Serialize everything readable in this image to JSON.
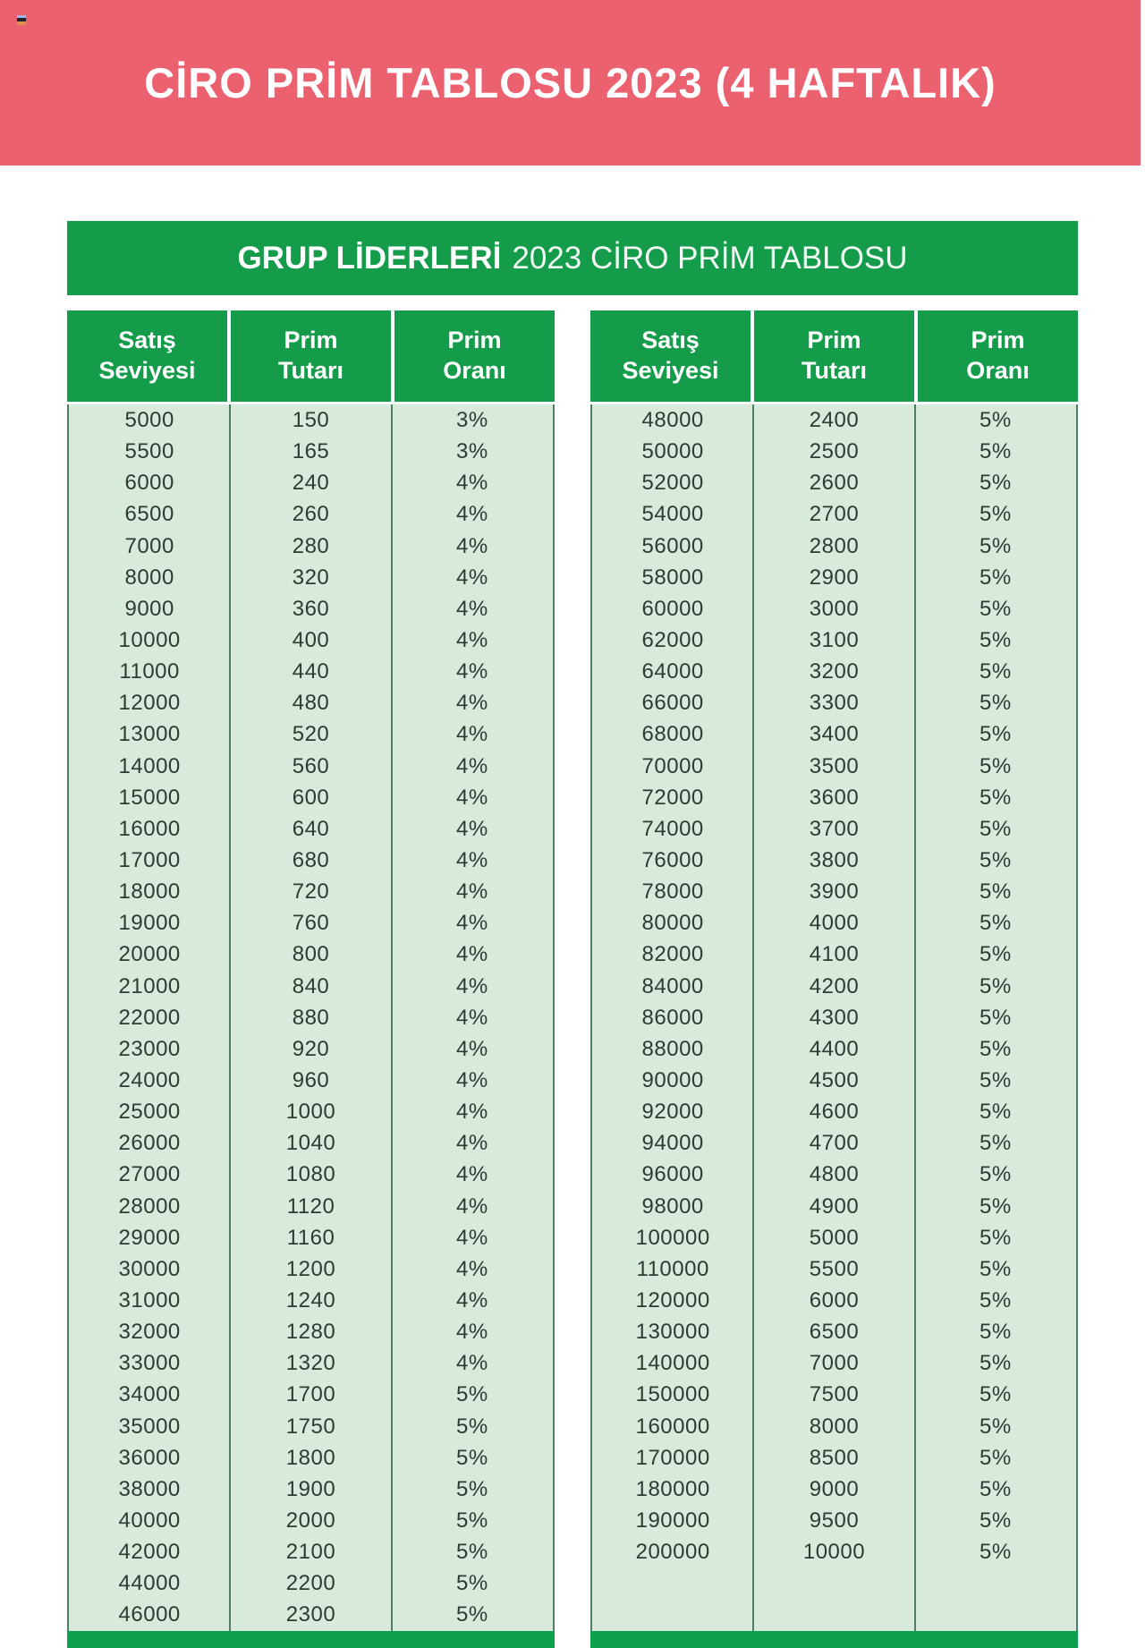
{
  "header": {
    "title": "CİRO PRİM TABLOSU 2023 (4 HAFTALIK)"
  },
  "banner": {
    "bold": "GRUP LİDERLERİ",
    "rest": "2023 CİRO PRİM TABLOSU"
  },
  "columns": [
    {
      "line1": "Satış",
      "line2": "Seviyesi"
    },
    {
      "line1": "Prim",
      "line2": "Tutarı"
    },
    {
      "line1": "Prim",
      "line2": "Oranı"
    }
  ],
  "tables": {
    "left": {
      "rows": [
        [
          "5000",
          "150",
          "3%"
        ],
        [
          "5500",
          "165",
          "3%"
        ],
        [
          "6000",
          "240",
          "4%"
        ],
        [
          "6500",
          "260",
          "4%"
        ],
        [
          "7000",
          "280",
          "4%"
        ],
        [
          "8000",
          "320",
          "4%"
        ],
        [
          "9000",
          "360",
          "4%"
        ],
        [
          "10000",
          "400",
          "4%"
        ],
        [
          "11000",
          "440",
          "4%"
        ],
        [
          "12000",
          "480",
          "4%"
        ],
        [
          "13000",
          "520",
          "4%"
        ],
        [
          "14000",
          "560",
          "4%"
        ],
        [
          "15000",
          "600",
          "4%"
        ],
        [
          "16000",
          "640",
          "4%"
        ],
        [
          "17000",
          "680",
          "4%"
        ],
        [
          "18000",
          "720",
          "4%"
        ],
        [
          "19000",
          "760",
          "4%"
        ],
        [
          "20000",
          "800",
          "4%"
        ],
        [
          "21000",
          "840",
          "4%"
        ],
        [
          "22000",
          "880",
          "4%"
        ],
        [
          "23000",
          "920",
          "4%"
        ],
        [
          "24000",
          "960",
          "4%"
        ],
        [
          "25000",
          "1000",
          "4%"
        ],
        [
          "26000",
          "1040",
          "4%"
        ],
        [
          "27000",
          "1080",
          "4%"
        ],
        [
          "28000",
          "1120",
          "4%"
        ],
        [
          "29000",
          "1160",
          "4%"
        ],
        [
          "30000",
          "1200",
          "4%"
        ],
        [
          "31000",
          "1240",
          "4%"
        ],
        [
          "32000",
          "1280",
          "4%"
        ],
        [
          "33000",
          "1320",
          "4%"
        ],
        [
          "34000",
          "1700",
          "5%"
        ],
        [
          "35000",
          "1750",
          "5%"
        ],
        [
          "36000",
          "1800",
          "5%"
        ],
        [
          "38000",
          "1900",
          "5%"
        ],
        [
          "40000",
          "2000",
          "5%"
        ],
        [
          "42000",
          "2100",
          "5%"
        ],
        [
          "44000",
          "2200",
          "5%"
        ],
        [
          "46000",
          "2300",
          "5%"
        ]
      ]
    },
    "right": {
      "rows": [
        [
          "48000",
          "2400",
          "5%"
        ],
        [
          "50000",
          "2500",
          "5%"
        ],
        [
          "52000",
          "2600",
          "5%"
        ],
        [
          "54000",
          "2700",
          "5%"
        ],
        [
          "56000",
          "2800",
          "5%"
        ],
        [
          "58000",
          "2900",
          "5%"
        ],
        [
          "60000",
          "3000",
          "5%"
        ],
        [
          "62000",
          "3100",
          "5%"
        ],
        [
          "64000",
          "3200",
          "5%"
        ],
        [
          "66000",
          "3300",
          "5%"
        ],
        [
          "68000",
          "3400",
          "5%"
        ],
        [
          "70000",
          "3500",
          "5%"
        ],
        [
          "72000",
          "3600",
          "5%"
        ],
        [
          "74000",
          "3700",
          "5%"
        ],
        [
          "76000",
          "3800",
          "5%"
        ],
        [
          "78000",
          "3900",
          "5%"
        ],
        [
          "80000",
          "4000",
          "5%"
        ],
        [
          "82000",
          "4100",
          "5%"
        ],
        [
          "84000",
          "4200",
          "5%"
        ],
        [
          "86000",
          "4300",
          "5%"
        ],
        [
          "88000",
          "4400",
          "5%"
        ],
        [
          "90000",
          "4500",
          "5%"
        ],
        [
          "92000",
          "4600",
          "5%"
        ],
        [
          "94000",
          "4700",
          "5%"
        ],
        [
          "96000",
          "4800",
          "5%"
        ],
        [
          "98000",
          "4900",
          "5%"
        ],
        [
          "100000",
          "5000",
          "5%"
        ],
        [
          "110000",
          "5500",
          "5%"
        ],
        [
          "120000",
          "6000",
          "5%"
        ],
        [
          "130000",
          "6500",
          "5%"
        ],
        [
          "140000",
          "7000",
          "5%"
        ],
        [
          "150000",
          "7500",
          "5%"
        ],
        [
          "160000",
          "8000",
          "5%"
        ],
        [
          "170000",
          "8500",
          "5%"
        ],
        [
          "180000",
          "9000",
          "5%"
        ],
        [
          "190000",
          "9500",
          "5%"
        ],
        [
          "200000",
          "10000",
          "5%"
        ]
      ]
    }
  },
  "colors": {
    "banner_pink": "#EC6170",
    "green": "#149C4A",
    "footer_green": "#0CA04C",
    "body_bg": "#D8EADB",
    "divider": "#4E7F63",
    "text": "#2F3A34"
  }
}
